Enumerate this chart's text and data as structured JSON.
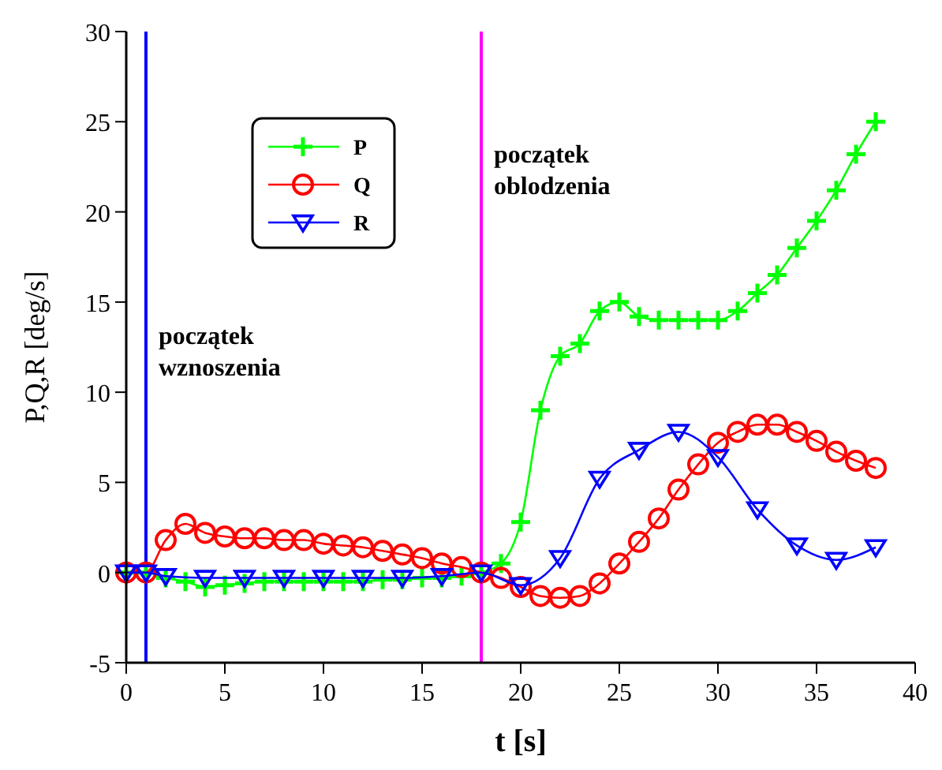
{
  "chart_data": {
    "type": "line",
    "xlabel": "t [s]",
    "ylabel": "P,Q,R [deg/s]",
    "xlim": [
      0,
      40
    ],
    "ylim": [
      -5,
      30
    ],
    "xticks": [
      0,
      5,
      10,
      15,
      20,
      25,
      30,
      35,
      40
    ],
    "yticks": [
      -5,
      0,
      5,
      10,
      15,
      20,
      25,
      30
    ],
    "grid": false,
    "legend": "top left",
    "series": [
      {
        "name": "P",
        "color": "#00ff00",
        "marker": "cross",
        "x": [
          0,
          1,
          2,
          3,
          4,
          5,
          6,
          7,
          8,
          9,
          10,
          11,
          12,
          13,
          14,
          15,
          16,
          17,
          18,
          19,
          20,
          21,
          22,
          23,
          24,
          25,
          26,
          27,
          28,
          29,
          30,
          31,
          32,
          33,
          34,
          35,
          36,
          37,
          38
        ],
        "values": [
          0,
          0,
          -0.3,
          -0.5,
          -0.8,
          -0.7,
          -0.6,
          -0.5,
          -0.5,
          -0.5,
          -0.5,
          -0.5,
          -0.5,
          -0.4,
          -0.4,
          -0.3,
          -0.3,
          -0.2,
          0,
          0.5,
          2.8,
          9,
          12,
          12.7,
          14.5,
          15,
          14.2,
          14,
          14,
          14,
          14,
          14.5,
          15.5,
          16.5,
          18,
          19.5,
          21.2,
          23.2,
          25
        ]
      },
      {
        "name": "Q",
        "color": "#ff0000",
        "marker": "circle",
        "x": [
          0,
          1,
          2,
          3,
          4,
          5,
          6,
          7,
          8,
          9,
          10,
          11,
          12,
          13,
          14,
          15,
          16,
          17,
          18,
          19,
          20,
          21,
          22,
          23,
          24,
          25,
          26,
          27,
          28,
          29,
          30,
          31,
          32,
          33,
          34,
          35,
          36,
          37,
          38
        ],
        "values": [
          0,
          0,
          1.8,
          2.7,
          2.2,
          2,
          1.9,
          1.9,
          1.8,
          1.8,
          1.6,
          1.5,
          1.4,
          1.2,
          1,
          0.8,
          0.5,
          0.3,
          0,
          -0.3,
          -0.8,
          -1.3,
          -1.4,
          -1.3,
          -0.6,
          0.5,
          1.7,
          3,
          4.6,
          6,
          7.2,
          7.8,
          8.2,
          8.2,
          7.8,
          7.3,
          6.7,
          6.2,
          5.8
        ]
      },
      {
        "name": "R",
        "color": "#0000ff",
        "marker": "triangle",
        "x": [
          0,
          1,
          2,
          4,
          6,
          8,
          10,
          12,
          14,
          16,
          18,
          20,
          22,
          24,
          26,
          28,
          30,
          32,
          34,
          36,
          38
        ],
        "values": [
          0,
          0,
          -0.2,
          -0.3,
          -0.3,
          -0.3,
          -0.3,
          -0.3,
          -0.3,
          -0.2,
          0,
          -0.7,
          0.8,
          5.2,
          6.8,
          7.8,
          6.4,
          3.5,
          1.5,
          0.7,
          1.4
        ]
      }
    ],
    "ref_lines": [
      {
        "axis": "x",
        "value": 1,
        "label": "początek wznoszenia",
        "color": "#0000ff"
      },
      {
        "axis": "x",
        "value": 18,
        "label": "początek oblodzenia",
        "color": "#ff00ff"
      }
    ]
  }
}
